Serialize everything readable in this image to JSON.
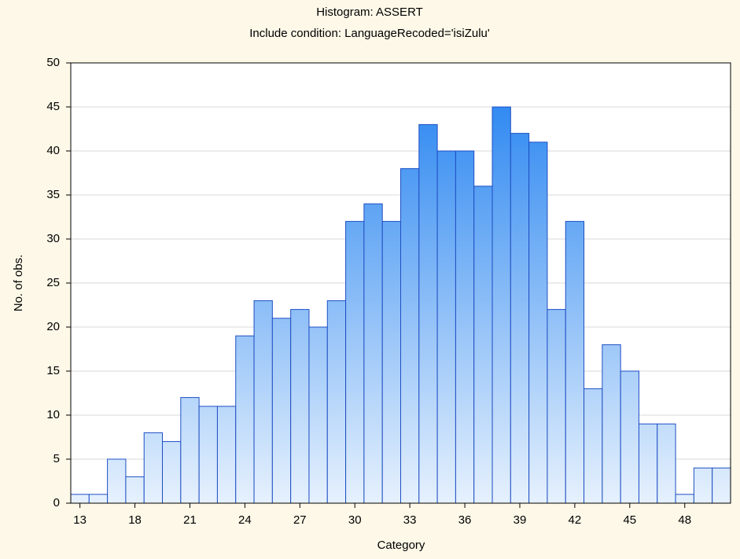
{
  "chart_data": {
    "type": "bar",
    "title": "Histogram: ASSERT",
    "subtitle": "Include condition: LanguageRecoded='isiZulu'",
    "xlabel": "Category",
    "ylabel": "No. of obs.",
    "categories": [
      "13",
      null,
      null,
      "18",
      null,
      null,
      "21",
      null,
      null,
      "24",
      null,
      null,
      "27",
      null,
      null,
      "30",
      null,
      null,
      "33",
      null,
      null,
      "36",
      null,
      null,
      "39",
      null,
      null,
      "42",
      null,
      null,
      "45",
      null,
      null,
      "48",
      null,
      null
    ],
    "values": [
      1,
      1,
      5,
      3,
      8,
      7,
      12,
      11,
      11,
      19,
      23,
      21,
      22,
      20,
      23,
      32,
      34,
      32,
      38,
      43,
      40,
      40,
      36,
      45,
      42,
      41,
      22,
      32,
      13,
      18,
      15,
      9,
      9,
      1,
      4,
      4
    ],
    "color": "#1e7ff0",
    "ylim": [
      0,
      50
    ],
    "yticks": [
      0,
      5,
      10,
      15,
      20,
      25,
      30,
      35,
      40,
      45,
      50
    ],
    "grid": true
  }
}
